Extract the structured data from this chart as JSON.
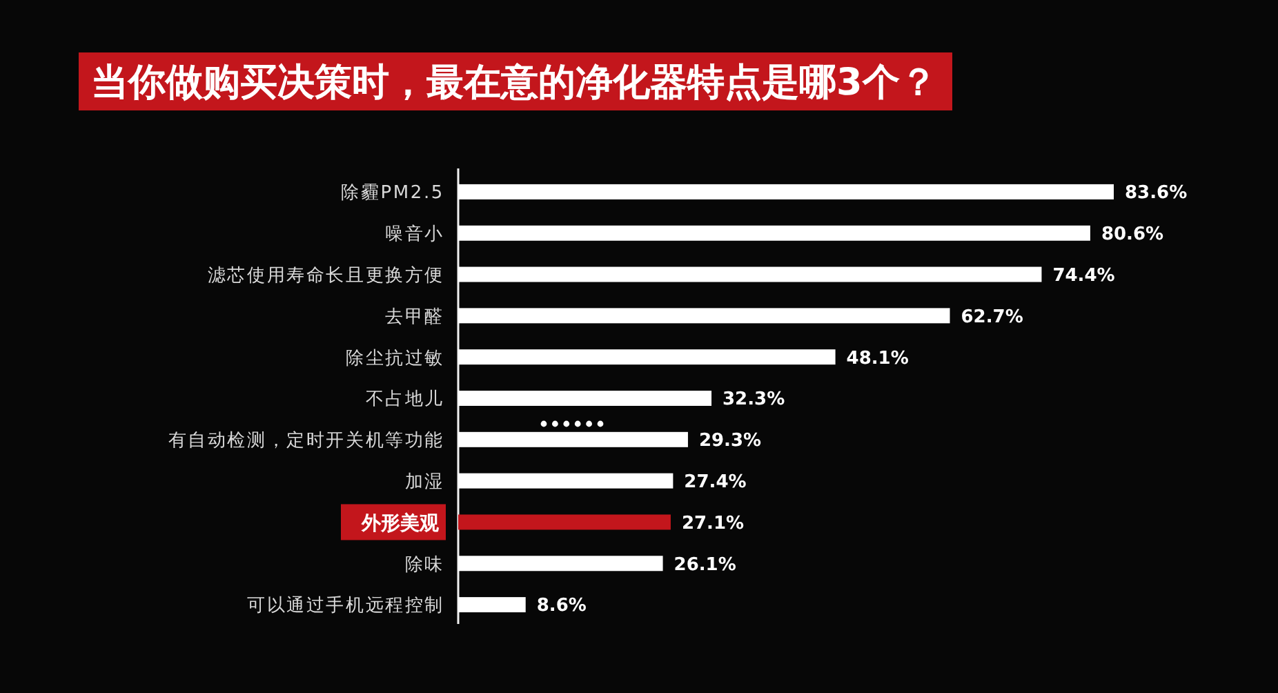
{
  "chart_data": {
    "type": "bar",
    "orientation": "horizontal",
    "title": "当你做购买决策时，最在意的净化器特点是哪3个？",
    "categories": [
      "除霾PM2.5",
      "噪音小",
      "滤芯使用寿命长且更换方便",
      "去甲醛",
      "除尘抗过敏",
      "不占地儿",
      "有自动检测，定时开关机等功能",
      "加湿",
      "外形美观",
      "除味",
      "可以通过手机远程控制"
    ],
    "values": [
      83.6,
      80.6,
      74.4,
      62.7,
      48.1,
      32.3,
      29.3,
      27.4,
      27.1,
      26.1,
      8.6
    ],
    "colors": [
      "#ffffff",
      "#ffffff",
      "#ffffff",
      "#ffffff",
      "#ffffff",
      "#ffffff",
      "#ffffff",
      "#ffffff",
      "#c3161c",
      "#ffffff",
      "#ffffff"
    ],
    "value_labels": [
      "83.6%",
      "80.6%",
      "74.4%",
      "62.7%",
      "48.1%",
      "32.3%",
      "29.3%",
      "27.4%",
      "27.1%",
      "26.1%",
      "8.6%"
    ]
  }
}
